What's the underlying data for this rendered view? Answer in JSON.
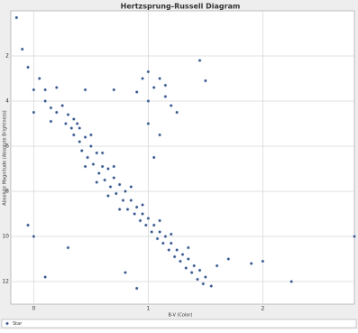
{
  "chart_data": {
    "type": "scatter",
    "title": "Hertzsprung-Russell Diagram",
    "x_label": "B-V (Color)",
    "y_label": "Absolute Magnitude (Absolute Brightness)",
    "series": [
      {
        "name": "Star",
        "color": "#34548a",
        "x": [
          0.0,
          0.05,
          0.1,
          0.15,
          0.2,
          0.25,
          0.28,
          0.3,
          0.33,
          0.35,
          0.38,
          0.4,
          0.42,
          0.45,
          0.47,
          0.5,
          0.52,
          0.55,
          0.57,
          0.6,
          0.62,
          0.65,
          0.67,
          0.7,
          0.72,
          0.75,
          0.78,
          0.8,
          0.82,
          0.85,
          0.88,
          0.9,
          0.93,
          0.95,
          0.98,
          1.0,
          1.03,
          1.05,
          1.08,
          1.1,
          1.13,
          1.15,
          1.18,
          1.2,
          1.23,
          1.25,
          1.28,
          1.3,
          1.33,
          1.35,
          1.38,
          1.4,
          1.43,
          1.45,
          1.48,
          1.5,
          1.55,
          0.45,
          0.55,
          0.65,
          0.75,
          0.6,
          0.5,
          0.7,
          0.85,
          0.95,
          1.1,
          1.2,
          0.4,
          0.35,
          1.6,
          1.7,
          1.35,
          -0.1,
          -0.15,
          -0.05,
          0.0,
          0.1,
          0.2,
          0.15,
          0.95,
          1.0,
          1.05,
          1.1,
          1.15,
          1.2,
          1.0,
          1.1,
          1.05,
          1.15,
          0.9,
          1.25,
          0.7,
          0.45,
          1.45,
          1.5,
          1.0,
          -0.05,
          0.0,
          0.3,
          0.1,
          0.8,
          1.9,
          2.25,
          2.0,
          2.8,
          0.9
        ],
        "values": [
          3.5,
          3.0,
          4.0,
          4.3,
          4.5,
          4.2,
          5.0,
          4.6,
          5.2,
          5.5,
          5.0,
          5.8,
          6.2,
          5.6,
          6.5,
          6.0,
          6.8,
          6.3,
          7.2,
          6.9,
          7.5,
          7.0,
          7.8,
          7.4,
          8.1,
          7.7,
          8.4,
          8.0,
          8.8,
          8.4,
          9.0,
          8.7,
          9.3,
          9.0,
          9.5,
          9.2,
          9.8,
          9.5,
          10.1,
          9.8,
          10.3,
          10.0,
          10.6,
          10.3,
          10.9,
          10.6,
          11.1,
          10.8,
          11.4,
          11.0,
          11.6,
          11.3,
          11.9,
          11.5,
          12.1,
          11.8,
          12.2,
          6.9,
          7.6,
          8.2,
          8.8,
          6.3,
          5.5,
          6.9,
          7.8,
          8.6,
          9.3,
          9.9,
          5.2,
          4.8,
          11.3,
          11.0,
          10.5,
          1.7,
          0.3,
          2.5,
          4.5,
          3.5,
          3.4,
          4.9,
          3.0,
          2.7,
          3.4,
          3.0,
          3.8,
          4.2,
          4.0,
          5.5,
          6.5,
          3.3,
          3.6,
          4.5,
          3.5,
          3.5,
          2.2,
          3.1,
          5.0,
          9.5,
          10.0,
          10.5,
          11.8,
          11.6,
          11.2,
          12.0,
          11.1,
          10.0,
          12.3
        ]
      }
    ],
    "xlim": [
      -0.2,
      2.8
    ],
    "ylim": [
      13,
      0
    ],
    "xticks": [
      0,
      1,
      2
    ],
    "yticks": [
      2,
      4,
      6,
      8,
      10,
      12
    ],
    "grid": true,
    "legend": "bottom-left"
  }
}
